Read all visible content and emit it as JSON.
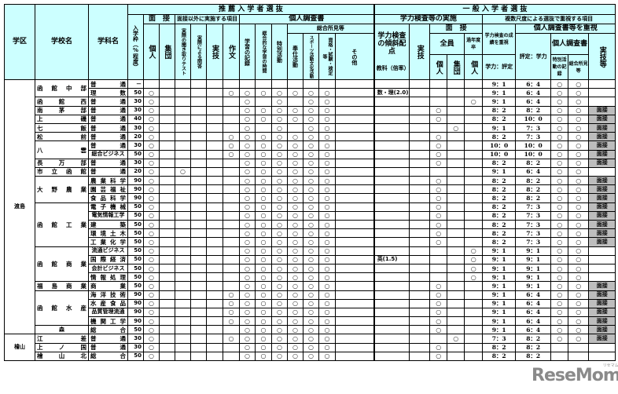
{
  "header": {
    "district": "学区",
    "school": "学校名",
    "department": "学科名",
    "suisen_title": "推 薦 入 学 者 選 抜",
    "ippan_title": "一 般 入 学 者 選 抜",
    "quota": "入学枠（%程度）",
    "interview": "面　接",
    "other_items": "面接以外に実施する項目",
    "report": "個人調査書",
    "kojin": "個人",
    "shudan": "集団",
    "listening": "実際の聞き取りテスト",
    "qa": "実際による問答",
    "practical": "実技",
    "essay": "作文",
    "study_record": "学習の記録",
    "integrated": "総合的な学習の時間",
    "special": "特別活動",
    "general_findings": "総合所見等",
    "volunteer": "奉仕活動",
    "sports": "スポーツ活動文化活動",
    "qualification": "資格・試験・検定等",
    "other": "その他",
    "exam_impl": "学力検査等の実施",
    "weighting": "学力検査の傾斜配点",
    "subject_ratio": "教科（倍率）",
    "exam_practical": "実技",
    "exam_interview": "面　接",
    "all": "全員",
    "prev_year": "過年度卒",
    "multi_scale": "複数尺度による選抜で重視する項目",
    "exam_score": "学力検査の成績を重視",
    "score_eval": "学力：評定",
    "report_focus": "個人調査書等を重視",
    "eval_score": "評定：学力",
    "report2": "個人調査書",
    "special_record": "特別活動の記録",
    "general_findings2": "総合所見等",
    "practical_etc": "実技等"
  },
  "rows": [
    {
      "district": "渡島",
      "district_span": 29,
      "school": "函館中部",
      "span": 2,
      "dept": "普通",
      "cells": [
        "－",
        "",
        "",
        "",
        "",
        "",
        "",
        "",
        "",
        "",
        "",
        "",
        "",
        "",
        "",
        "",
        "",
        "",
        "",
        "9：1",
        "6：4",
        "○",
        "○",
        ""
      ]
    },
    {
      "dept": "理数",
      "cells": [
        "50",
        "○",
        "",
        "",
        "",
        "",
        "○",
        "○",
        "○",
        "○",
        "○",
        "○",
        "○",
        "",
        "数・理(2.0)",
        "",
        "",
        "",
        "",
        "9：1",
        "6：4",
        "○",
        "○",
        ""
      ]
    },
    {
      "school": "函館西",
      "span": 1,
      "dept": "普通",
      "cells": [
        "30",
        "○",
        "",
        "",
        "",
        "",
        "",
        "○",
        "",
        "○",
        "",
        "○",
        "○",
        "",
        "",
        "",
        "",
        "",
        "○",
        "9：1",
        "6：4",
        "○",
        "○",
        ""
      ]
    },
    {
      "school": "南茅部",
      "span": 1,
      "dept": "普通",
      "cells": [
        "30",
        "○",
        "",
        "",
        "",
        "",
        "",
        "○",
        "○",
        "○",
        "○",
        "○",
        "○",
        "",
        "",
        "",
        "○",
        "",
        "",
        "8：2",
        "8：2",
        "○",
        "○",
        "面接"
      ]
    },
    {
      "school": "上磯",
      "span": 1,
      "dept": "普通",
      "cells": [
        "40",
        "○",
        "",
        "",
        "",
        "",
        "",
        "○",
        "○",
        "○",
        "○",
        "○",
        "○",
        "",
        "",
        "",
        "○",
        "",
        "",
        "8：2",
        "10：0",
        "○",
        "○",
        "面接"
      ]
    },
    {
      "school": "七飯",
      "span": 1,
      "dept": "普通",
      "cells": [
        "30",
        "○",
        "",
        "",
        "",
        "",
        "",
        "○",
        "",
        "○",
        "",
        "○",
        "○",
        "",
        "",
        "",
        "",
        "○",
        "",
        "9：1",
        "7：3",
        "○",
        "○",
        "面接"
      ]
    },
    {
      "school": "松前",
      "span": 1,
      "dept": "普通",
      "cells": [
        "20",
        "○",
        "",
        "",
        "",
        "",
        "○",
        "○",
        "○",
        "○",
        "○",
        "○",
        "○",
        "",
        "",
        "",
        "○",
        "",
        "",
        "8：2",
        "7：3",
        "○",
        "○",
        "面接"
      ]
    },
    {
      "school": "八雲",
      "span": 2,
      "dept": "普通",
      "cells": [
        "30",
        "○",
        "",
        "",
        "",
        "",
        "○",
        "○",
        "○",
        "○",
        "○",
        "○",
        "○",
        "",
        "",
        "",
        "○",
        "",
        "",
        "10：0",
        "10：0",
        "○",
        "○",
        "面接"
      ]
    },
    {
      "dept": "総合ビジネス",
      "cells": [
        "50",
        "○",
        "",
        "",
        "",
        "",
        "○",
        "○",
        "○",
        "○",
        "○",
        "○",
        "○",
        "",
        "",
        "",
        "○",
        "",
        "",
        "10：0",
        "10：0",
        "○",
        "○",
        "面接"
      ]
    },
    {
      "school": "長万部",
      "span": 1,
      "dept": "普通",
      "cells": [
        "30",
        "○",
        "",
        "",
        "",
        "",
        "",
        "○",
        "○",
        "○",
        "○",
        "○",
        "○",
        "",
        "",
        "",
        "○",
        "",
        "",
        "8：2",
        "8：2",
        "○",
        "○",
        "面接"
      ]
    },
    {
      "school": "市立函館",
      "span": 1,
      "dept": "普通",
      "cells": [
        "20",
        "○",
        "",
        "○",
        "",
        "",
        "",
        "○",
        "○",
        "○",
        "○",
        "○",
        "○",
        "",
        "",
        "",
        "",
        "",
        "",
        "9：1",
        "6：4",
        "○",
        "○",
        ""
      ]
    },
    {
      "school": "大野農業",
      "span": 3,
      "dept": "農業科学",
      "cells": [
        "90",
        "○",
        "",
        "",
        "",
        "",
        "",
        "○",
        "○",
        "○",
        "○",
        "○",
        "○",
        "",
        "",
        "",
        "○",
        "",
        "",
        "8：2",
        "8：2",
        "○",
        "○",
        "面接"
      ]
    },
    {
      "dept": "園芸福祉",
      "cells": [
        "90",
        "○",
        "",
        "",
        "",
        "",
        "",
        "○",
        "○",
        "○",
        "○",
        "○",
        "○",
        "",
        "",
        "",
        "○",
        "",
        "",
        "8：2",
        "8：2",
        "○",
        "○",
        "面接"
      ]
    },
    {
      "dept": "食品科学",
      "cells": [
        "90",
        "○",
        "",
        "",
        "",
        "",
        "",
        "○",
        "○",
        "○",
        "○",
        "○",
        "○",
        "",
        "",
        "",
        "○",
        "",
        "",
        "8：2",
        "8：2",
        "○",
        "○",
        "面接"
      ]
    },
    {
      "school": "函館工業",
      "span": 5,
      "dept": "電子機械",
      "cells": [
        "50",
        "○",
        "",
        "",
        "",
        "",
        "",
        "○",
        "○",
        "○",
        "○",
        "○",
        "○",
        "",
        "",
        "",
        "○",
        "",
        "",
        "8：2",
        "7：3",
        "○",
        "○",
        "面接"
      ]
    },
    {
      "dept": "電気情報工学",
      "cells": [
        "50",
        "○",
        "",
        "",
        "",
        "",
        "",
        "○",
        "○",
        "○",
        "○",
        "○",
        "○",
        "",
        "",
        "",
        "○",
        "",
        "",
        "8：2",
        "7：3",
        "○",
        "○",
        "面接"
      ]
    },
    {
      "dept": "建築",
      "cells": [
        "50",
        "○",
        "",
        "",
        "",
        "",
        "",
        "○",
        "○",
        "○",
        "○",
        "○",
        "○",
        "",
        "",
        "",
        "○",
        "",
        "",
        "8：2",
        "7：3",
        "○",
        "○",
        "面接"
      ]
    },
    {
      "dept": "環境土木",
      "cells": [
        "50",
        "○",
        "",
        "",
        "",
        "",
        "",
        "○",
        "○",
        "○",
        "○",
        "○",
        "○",
        "",
        "",
        "",
        "○",
        "",
        "",
        "8：2",
        "7：3",
        "○",
        "○",
        "面接"
      ]
    },
    {
      "dept": "工業化学",
      "cells": [
        "50",
        "○",
        "",
        "",
        "",
        "",
        "",
        "○",
        "○",
        "○",
        "○",
        "○",
        "○",
        "",
        "",
        "",
        "○",
        "",
        "",
        "8：2",
        "7：3",
        "○",
        "○",
        "面接"
      ]
    },
    {
      "school": "函館商業",
      "span": 4,
      "dept": "流通ビジネス",
      "cells": [
        "50",
        "○",
        "",
        "",
        "",
        "",
        "",
        "○",
        "○",
        "○",
        "○",
        "○",
        "○",
        "",
        "",
        "",
        "",
        "",
        "○",
        "9：1",
        "9：1",
        "○",
        "○",
        ""
      ]
    },
    {
      "dept": "国際経済",
      "cells": [
        "50",
        "○",
        "",
        "",
        "",
        "",
        "",
        "○",
        "○",
        "○",
        "○",
        "○",
        "○",
        "",
        "英(1.5)",
        "",
        "",
        "",
        "○",
        "9：1",
        "9：1",
        "○",
        "○",
        ""
      ]
    },
    {
      "dept": "会計ビジネス",
      "cells": [
        "50",
        "○",
        "",
        "",
        "",
        "",
        "",
        "○",
        "○",
        "○",
        "○",
        "○",
        "○",
        "",
        "",
        "",
        "",
        "",
        "○",
        "9：1",
        "9：1",
        "○",
        "○",
        ""
      ]
    },
    {
      "dept": "情報処理",
      "cells": [
        "50",
        "○",
        "",
        "",
        "",
        "",
        "",
        "○",
        "○",
        "○",
        "○",
        "○",
        "○",
        "",
        "",
        "",
        "",
        "",
        "○",
        "9：1",
        "9：1",
        "○",
        "○",
        ""
      ]
    },
    {
      "school": "福島商業",
      "span": 1,
      "dept": "商業",
      "cells": [
        "50",
        "○",
        "",
        "",
        "",
        "",
        "",
        "○",
        "○",
        "○",
        "○",
        "○",
        "○",
        "",
        "",
        "",
        "○",
        "",
        "",
        "9：1",
        "9：1",
        "○",
        "○",
        "面接"
      ]
    },
    {
      "school": "函館水産",
      "span": 4,
      "dept": "海洋技術",
      "cells": [
        "90",
        "○",
        "",
        "",
        "",
        "",
        "○",
        "○",
        "○",
        "○",
        "○",
        "○",
        "○",
        "",
        "",
        "",
        "○",
        "",
        "",
        "9：1",
        "6：4",
        "○",
        "○",
        "面接"
      ]
    },
    {
      "dept": "水産食品",
      "cells": [
        "90",
        "○",
        "",
        "",
        "",
        "",
        "○",
        "○",
        "○",
        "○",
        "○",
        "○",
        "○",
        "",
        "",
        "",
        "○",
        "",
        "",
        "9：1",
        "6：4",
        "○",
        "○",
        "面接"
      ]
    },
    {
      "dept": "品質管理流通",
      "cells": [
        "90",
        "○",
        "",
        "",
        "",
        "",
        "○",
        "○",
        "○",
        "○",
        "○",
        "○",
        "○",
        "",
        "",
        "",
        "○",
        "",
        "",
        "9：1",
        "6：4",
        "○",
        "○",
        "面接"
      ]
    },
    {
      "dept": "機関工学",
      "cells": [
        "90",
        "○",
        "",
        "",
        "",
        "",
        "○",
        "○",
        "○",
        "○",
        "○",
        "○",
        "○",
        "",
        "",
        "",
        "○",
        "",
        "",
        "9：1",
        "6：4",
        "○",
        "○",
        "面接"
      ]
    },
    {
      "school": "森",
      "span": 1,
      "center": true,
      "dept": "総合",
      "cells": [
        "50",
        "○",
        "",
        "",
        "",
        "",
        "",
        "○",
        "○",
        "○",
        "○",
        "○",
        "○",
        "",
        "",
        "",
        "○",
        "",
        "",
        "9：1",
        "6：4",
        "○",
        "○",
        "面接"
      ]
    },
    {
      "district": "檜山",
      "district_span": 3,
      "school": "江差",
      "span": 1,
      "dept": "普通",
      "cells": [
        "30",
        "○",
        "",
        "",
        "",
        "",
        "○",
        "○",
        "○",
        "○",
        "○",
        "○",
        "○",
        "",
        "",
        "",
        "",
        "○",
        "",
        "7：3",
        "8：2",
        "○",
        "○",
        "面接"
      ]
    },
    {
      "school": "上ノ国",
      "span": 1,
      "dept": "普通",
      "cells": [
        "30",
        "○",
        "",
        "",
        "",
        "",
        "",
        "○",
        "○",
        "○",
        "○",
        "○",
        "○",
        "",
        "",
        "",
        "○",
        "",
        "",
        "8：2",
        "8：2",
        "",
        "",
        ""
      ]
    },
    {
      "school": "檜山北",
      "span": 1,
      "dept": "総合",
      "cells": [
        "50",
        "○",
        "",
        "",
        "",
        "",
        "",
        "○",
        "○",
        "○",
        "○",
        "○",
        "○",
        "",
        "",
        "",
        "○",
        "",
        "",
        "8：2",
        "8：2",
        "",
        "",
        ""
      ]
    }
  ],
  "columns": [
    "quota",
    "interview-individual",
    "interview-group",
    "listening-test",
    "qa",
    "practical",
    "essay",
    "study-record",
    "integrated-study",
    "special-activities",
    "volunteer",
    "sports-culture",
    "qualification",
    "other",
    "weighting",
    "exam-practical",
    "all-individual",
    "all-group",
    "prev-year-individual",
    "score-eval-ratio",
    "eval-score-ratio",
    "special-record",
    "general-findings",
    "practical-etc"
  ],
  "logo": {
    "text": "ReseMom",
    "kana": "リセマム",
    "color": "#8a8a8a"
  },
  "colors": {
    "header_bg": "#ccffff",
    "mensetsu_bg": "#bdbdbd"
  }
}
